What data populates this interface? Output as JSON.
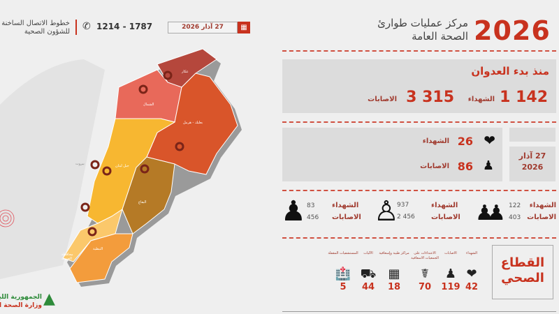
{
  "header": {
    "year": "2026",
    "title_line1": "مركز عمليات طوارئ",
    "title_line2": "الصحة العامة"
  },
  "topbar": {
    "hotline_label_line1": "خطوط الاتصال الساخنة",
    "hotline_label_line2": "للشؤون الصحية",
    "phone": "1214 - 1787",
    "date": "27 آذار 2026"
  },
  "since_start": {
    "title": "منذ بدء العدوان",
    "martyrs_value": "1 142",
    "martyrs_label": "الشهداء",
    "injured_value": "3 315",
    "injured_label": "الاصابات"
  },
  "daily": {
    "date_line1": "27 آذار",
    "date_line2": "2026",
    "martyrs_value": "26",
    "martyrs_label": "الشهداء",
    "injured_value": "86",
    "injured_label": "الاصابات"
  },
  "demographics": [
    {
      "group": "children",
      "martyrs_label": "الشهداء",
      "martyrs": "122",
      "injured_label": "الاصابات",
      "injured": "403"
    },
    {
      "group": "men",
      "martyrs_label": "الشهداء",
      "martyrs": "937",
      "injured_label": "الاصابات",
      "injured": "2 456"
    },
    {
      "group": "women",
      "martyrs_label": "الشهداء",
      "martyrs": "83",
      "injured_label": "الاصابات",
      "injured": "456"
    }
  ],
  "health_sector": {
    "title_line1": "القطاع",
    "title_line2": "الصحي",
    "items": [
      {
        "label": "الشهداء",
        "value": "42",
        "icon": "heart-icon"
      },
      {
        "label": "الاصابات",
        "value": "119",
        "icon": "injured-person-icon"
      },
      {
        "label": "الاعتداءات على الجمعيات الاسعافية",
        "value": "70",
        "icon": "paramedic-icon"
      },
      {
        "label": "مراكز طبية وإسعافية",
        "value": "18",
        "icon": "medical-center-icon"
      },
      {
        "label": "الآليات",
        "value": "44",
        "icon": "ambulance-icon"
      },
      {
        "label": "المستشفيات المقفلة",
        "value": "5",
        "icon": "hospital-icon"
      }
    ]
  },
  "map": {
    "regions": [
      {
        "name": "عكار",
        "color": "#b5473c"
      },
      {
        "name": "الشمال",
        "color": "#e8695a"
      },
      {
        "name": "بعلبك - هرمل",
        "color": "#d9552a"
      },
      {
        "name": "جبل لبنان",
        "color": "#f7b731"
      },
      {
        "name": "البقاع",
        "color": "#b57a26"
      },
      {
        "name": "محافظة الجنوب",
        "color": "#fbc86b"
      },
      {
        "name": "النبطية",
        "color": "#f39c3c"
      }
    ],
    "city": "بيروت"
  },
  "footer": {
    "logo_line1": "الجمهورية اللبنانية",
    "logo_line2": "وزارة الصحة العامة"
  }
}
